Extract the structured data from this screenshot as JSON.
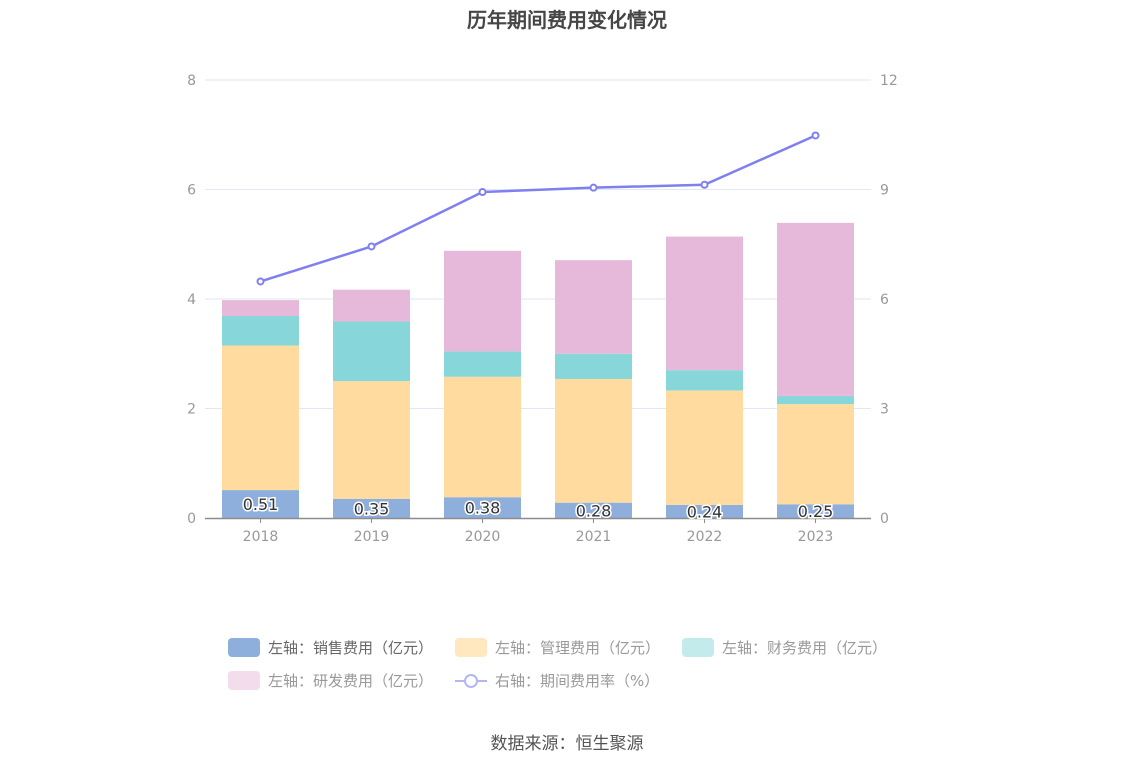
{
  "chart_data": {
    "type": "bar",
    "title": "历年期间费用变化情况",
    "categories": [
      "2018",
      "2019",
      "2020",
      "2021",
      "2022",
      "2023"
    ],
    "series": [
      {
        "name": "左轴：销售费用（亿元）",
        "type": "bar",
        "axis": "left",
        "color": "#8eafdc",
        "values": [
          0.51,
          0.35,
          0.38,
          0.28,
          0.24,
          0.25
        ],
        "labels": [
          "0.51",
          "0.35",
          "0.38",
          "0.28",
          "0.24",
          "0.25"
        ]
      },
      {
        "name": "左轴：管理费用（亿元）",
        "type": "bar",
        "axis": "left",
        "color": "#ffdb9f",
        "values": [
          2.64,
          2.15,
          2.2,
          2.26,
          2.09,
          1.83
        ]
      },
      {
        "name": "左轴：财务费用（亿元）",
        "type": "bar",
        "axis": "left",
        "color": "#87d6d9",
        "values": [
          0.54,
          1.09,
          0.46,
          0.46,
          0.37,
          0.15
        ]
      },
      {
        "name": "左轴：研发费用（亿元）",
        "type": "bar",
        "axis": "left",
        "color": "#e6b9da",
        "values": [
          0.29,
          0.58,
          1.84,
          1.71,
          2.44,
          3.16
        ]
      },
      {
        "name": "右轴：期间费用率（%）",
        "type": "line",
        "axis": "right",
        "color": "#7f7ff0",
        "values": [
          6.48,
          7.44,
          8.93,
          9.05,
          9.13,
          10.48
        ]
      }
    ],
    "left_axis": {
      "ylim": [
        0,
        8
      ],
      "ticks": [
        "0",
        "2",
        "4",
        "6",
        "8"
      ]
    },
    "right_axis": {
      "ylim": [
        0,
        12
      ],
      "ticks": [
        "0",
        "3",
        "6",
        "9",
        "12"
      ]
    },
    "grid": true,
    "legend_position": "bottom"
  },
  "legend": {
    "items": [
      {
        "label": "左轴：销售费用（亿元）",
        "color": "#8eafdc",
        "kind": "bar"
      },
      {
        "label": "左轴：管理费用（亿元）",
        "color": "#ffe7bf",
        "kind": "bar"
      },
      {
        "label": "左轴：财务费用（亿元）",
        "color": "#c3ebec",
        "kind": "bar"
      },
      {
        "label": "左轴：研发费用（亿元）",
        "color": "#f3dcec",
        "kind": "bar"
      },
      {
        "label": "右轴：期间费用率（%）",
        "color": "#b3b6f4",
        "kind": "line"
      }
    ]
  },
  "source": "数据来源：恒生聚源"
}
